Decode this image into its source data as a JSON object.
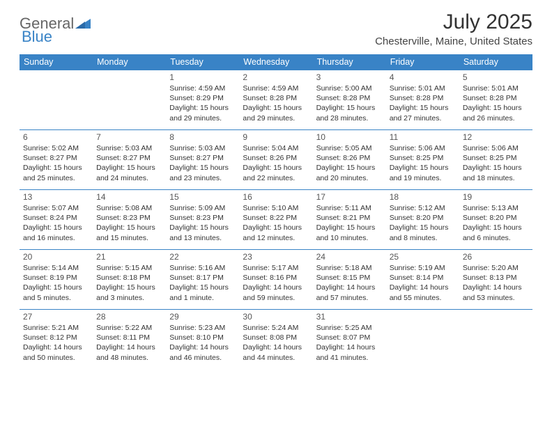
{
  "logo": {
    "text1": "General",
    "text2": "Blue"
  },
  "title": "July 2025",
  "subtitle": "Chesterville, Maine, United States",
  "colors": {
    "header_bg": "#3983c6",
    "header_text": "#ffffff",
    "border": "#3983c6",
    "logo_blue": "#3983c6",
    "logo_gray": "#666666"
  },
  "days_of_week": [
    "Sunday",
    "Monday",
    "Tuesday",
    "Wednesday",
    "Thursday",
    "Friday",
    "Saturday"
  ],
  "weeks": [
    [
      null,
      null,
      {
        "n": "1",
        "sr": "Sunrise: 4:59 AM",
        "ss": "Sunset: 8:29 PM",
        "dl": "Daylight: 15 hours and 29 minutes."
      },
      {
        "n": "2",
        "sr": "Sunrise: 4:59 AM",
        "ss": "Sunset: 8:28 PM",
        "dl": "Daylight: 15 hours and 29 minutes."
      },
      {
        "n": "3",
        "sr": "Sunrise: 5:00 AM",
        "ss": "Sunset: 8:28 PM",
        "dl": "Daylight: 15 hours and 28 minutes."
      },
      {
        "n": "4",
        "sr": "Sunrise: 5:01 AM",
        "ss": "Sunset: 8:28 PM",
        "dl": "Daylight: 15 hours and 27 minutes."
      },
      {
        "n": "5",
        "sr": "Sunrise: 5:01 AM",
        "ss": "Sunset: 8:28 PM",
        "dl": "Daylight: 15 hours and 26 minutes."
      }
    ],
    [
      {
        "n": "6",
        "sr": "Sunrise: 5:02 AM",
        "ss": "Sunset: 8:27 PM",
        "dl": "Daylight: 15 hours and 25 minutes."
      },
      {
        "n": "7",
        "sr": "Sunrise: 5:03 AM",
        "ss": "Sunset: 8:27 PM",
        "dl": "Daylight: 15 hours and 24 minutes."
      },
      {
        "n": "8",
        "sr": "Sunrise: 5:03 AM",
        "ss": "Sunset: 8:27 PM",
        "dl": "Daylight: 15 hours and 23 minutes."
      },
      {
        "n": "9",
        "sr": "Sunrise: 5:04 AM",
        "ss": "Sunset: 8:26 PM",
        "dl": "Daylight: 15 hours and 22 minutes."
      },
      {
        "n": "10",
        "sr": "Sunrise: 5:05 AM",
        "ss": "Sunset: 8:26 PM",
        "dl": "Daylight: 15 hours and 20 minutes."
      },
      {
        "n": "11",
        "sr": "Sunrise: 5:06 AM",
        "ss": "Sunset: 8:25 PM",
        "dl": "Daylight: 15 hours and 19 minutes."
      },
      {
        "n": "12",
        "sr": "Sunrise: 5:06 AM",
        "ss": "Sunset: 8:25 PM",
        "dl": "Daylight: 15 hours and 18 minutes."
      }
    ],
    [
      {
        "n": "13",
        "sr": "Sunrise: 5:07 AM",
        "ss": "Sunset: 8:24 PM",
        "dl": "Daylight: 15 hours and 16 minutes."
      },
      {
        "n": "14",
        "sr": "Sunrise: 5:08 AM",
        "ss": "Sunset: 8:23 PM",
        "dl": "Daylight: 15 hours and 15 minutes."
      },
      {
        "n": "15",
        "sr": "Sunrise: 5:09 AM",
        "ss": "Sunset: 8:23 PM",
        "dl": "Daylight: 15 hours and 13 minutes."
      },
      {
        "n": "16",
        "sr": "Sunrise: 5:10 AM",
        "ss": "Sunset: 8:22 PM",
        "dl": "Daylight: 15 hours and 12 minutes."
      },
      {
        "n": "17",
        "sr": "Sunrise: 5:11 AM",
        "ss": "Sunset: 8:21 PM",
        "dl": "Daylight: 15 hours and 10 minutes."
      },
      {
        "n": "18",
        "sr": "Sunrise: 5:12 AM",
        "ss": "Sunset: 8:20 PM",
        "dl": "Daylight: 15 hours and 8 minutes."
      },
      {
        "n": "19",
        "sr": "Sunrise: 5:13 AM",
        "ss": "Sunset: 8:20 PM",
        "dl": "Daylight: 15 hours and 6 minutes."
      }
    ],
    [
      {
        "n": "20",
        "sr": "Sunrise: 5:14 AM",
        "ss": "Sunset: 8:19 PM",
        "dl": "Daylight: 15 hours and 5 minutes."
      },
      {
        "n": "21",
        "sr": "Sunrise: 5:15 AM",
        "ss": "Sunset: 8:18 PM",
        "dl": "Daylight: 15 hours and 3 minutes."
      },
      {
        "n": "22",
        "sr": "Sunrise: 5:16 AM",
        "ss": "Sunset: 8:17 PM",
        "dl": "Daylight: 15 hours and 1 minute."
      },
      {
        "n": "23",
        "sr": "Sunrise: 5:17 AM",
        "ss": "Sunset: 8:16 PM",
        "dl": "Daylight: 14 hours and 59 minutes."
      },
      {
        "n": "24",
        "sr": "Sunrise: 5:18 AM",
        "ss": "Sunset: 8:15 PM",
        "dl": "Daylight: 14 hours and 57 minutes."
      },
      {
        "n": "25",
        "sr": "Sunrise: 5:19 AM",
        "ss": "Sunset: 8:14 PM",
        "dl": "Daylight: 14 hours and 55 minutes."
      },
      {
        "n": "26",
        "sr": "Sunrise: 5:20 AM",
        "ss": "Sunset: 8:13 PM",
        "dl": "Daylight: 14 hours and 53 minutes."
      }
    ],
    [
      {
        "n": "27",
        "sr": "Sunrise: 5:21 AM",
        "ss": "Sunset: 8:12 PM",
        "dl": "Daylight: 14 hours and 50 minutes."
      },
      {
        "n": "28",
        "sr": "Sunrise: 5:22 AM",
        "ss": "Sunset: 8:11 PM",
        "dl": "Daylight: 14 hours and 48 minutes."
      },
      {
        "n": "29",
        "sr": "Sunrise: 5:23 AM",
        "ss": "Sunset: 8:10 PM",
        "dl": "Daylight: 14 hours and 46 minutes."
      },
      {
        "n": "30",
        "sr": "Sunrise: 5:24 AM",
        "ss": "Sunset: 8:08 PM",
        "dl": "Daylight: 14 hours and 44 minutes."
      },
      {
        "n": "31",
        "sr": "Sunrise: 5:25 AM",
        "ss": "Sunset: 8:07 PM",
        "dl": "Daylight: 14 hours and 41 minutes."
      },
      null,
      null
    ]
  ]
}
